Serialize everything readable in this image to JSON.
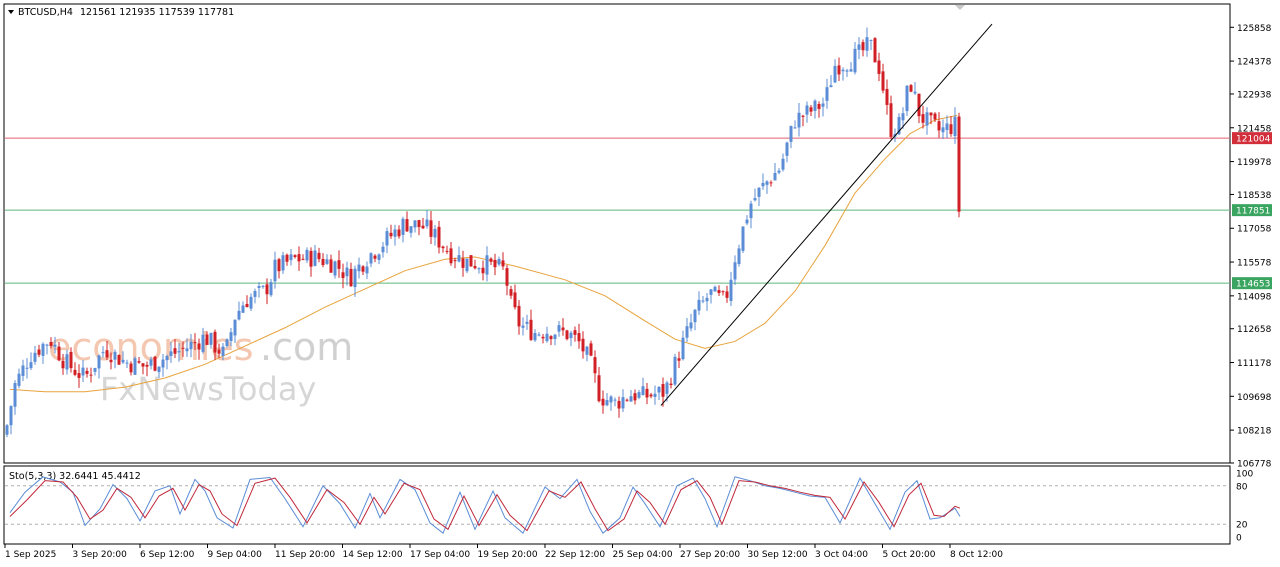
{
  "header": {
    "symbol": "BTCUSD,H4",
    "ohlc": "121561 121935 117539 117781"
  },
  "indicator": {
    "label": "Sto(5,3,3) 32.6441 45.4412",
    "scale_labels": [
      "100",
      "80",
      "20",
      "0"
    ],
    "levels": [
      80,
      20
    ]
  },
  "watermark": {
    "part1": "economies",
    "part2": ".com",
    "part3": "FxNewsToday"
  },
  "colors": {
    "bull": "#5b8dd6",
    "bear": "#d21f26",
    "ma": "#e8a33d",
    "stoch_main": "#5b8dd6",
    "stoch_signal": "#c0283a",
    "resistance": "#e06070",
    "support": "#5cb87a",
    "trendline": "#000000"
  },
  "chart_data": {
    "type": "candlestick",
    "symbol": "BTCUSD",
    "timeframe": "H4",
    "ylim": [
      106778,
      126878
    ],
    "y_ticks": [
      125858,
      124378,
      122938,
      121458,
      119978,
      118538,
      117058,
      115578,
      114098,
      112658,
      111178,
      109698,
      108218,
      106778
    ],
    "x_ticks": [
      "1 Sep 2025",
      "3 Sep 20:00",
      "6 Sep 12:00",
      "9 Sep 04:00",
      "11 Sep 20:00",
      "14 Sep 12:00",
      "17 Sep 04:00",
      "19 Sep 20:00",
      "22 Sep 12:00",
      "25 Sep 04:00",
      "27 Sep 20:00",
      "30 Sep 12:00",
      "3 Oct 04:00",
      "5 Oct 20:00",
      "8 Oct 12:00"
    ],
    "horizontal_levels": [
      {
        "label": "121004",
        "value": 121004,
        "kind": "resistance"
      },
      {
        "label": "117851",
        "value": 117851,
        "kind": "support"
      },
      {
        "label": "114653",
        "value": 114653,
        "kind": "support"
      }
    ],
    "trendline": {
      "from": {
        "x": "27 Sep",
        "y": 109300
      },
      "to": {
        "x": "9 Oct",
        "y": 126000
      }
    },
    "price_path": [
      [
        0,
        108000
      ],
      [
        10,
        110200
      ],
      [
        25,
        111500
      ],
      [
        45,
        112200
      ],
      [
        60,
        111200
      ],
      [
        80,
        110500
      ],
      [
        100,
        111800
      ],
      [
        120,
        111200
      ],
      [
        140,
        111000
      ],
      [
        160,
        111400
      ],
      [
        180,
        111800
      ],
      [
        200,
        112300
      ],
      [
        220,
        111500
      ],
      [
        230,
        113200
      ],
      [
        240,
        113900
      ],
      [
        260,
        114300
      ],
      [
        270,
        115300
      ],
      [
        290,
        115700
      ],
      [
        310,
        115800
      ],
      [
        330,
        115500
      ],
      [
        345,
        114900
      ],
      [
        360,
        115700
      ],
      [
        380,
        116500
      ],
      [
        400,
        117300
      ],
      [
        420,
        117100
      ],
      [
        430,
        116700
      ],
      [
        445,
        116000
      ],
      [
        460,
        115600
      ],
      [
        480,
        115500
      ],
      [
        500,
        115200
      ],
      [
        505,
        113800
      ],
      [
        515,
        112800
      ],
      [
        530,
        112500
      ],
      [
        545,
        112600
      ],
      [
        565,
        112400
      ],
      [
        575,
        112000
      ],
      [
        585,
        111200
      ],
      [
        595,
        109700
      ],
      [
        610,
        109400
      ],
      [
        625,
        109800
      ],
      [
        640,
        109700
      ],
      [
        660,
        109900
      ],
      [
        675,
        111700
      ],
      [
        690,
        113300
      ],
      [
        705,
        114200
      ],
      [
        720,
        113800
      ],
      [
        730,
        115800
      ],
      [
        745,
        118100
      ],
      [
        760,
        119000
      ],
      [
        775,
        119700
      ],
      [
        790,
        121800
      ],
      [
        810,
        122300
      ],
      [
        820,
        122600
      ],
      [
        830,
        124200
      ],
      [
        840,
        124300
      ],
      [
        855,
        124700
      ],
      [
        865,
        125100
      ],
      [
        875,
        124000
      ],
      [
        885,
        121400
      ],
      [
        895,
        121600
      ],
      [
        905,
        123500
      ],
      [
        915,
        122000
      ],
      [
        925,
        121600
      ],
      [
        935,
        121300
      ],
      [
        945,
        121500
      ],
      [
        952,
        121600
      ],
      [
        955,
        117781
      ]
    ],
    "moving_average": [
      [
        5,
        110000
      ],
      [
        40,
        109900
      ],
      [
        80,
        109900
      ],
      [
        120,
        110100
      ],
      [
        160,
        110500
      ],
      [
        200,
        111100
      ],
      [
        240,
        111900
      ],
      [
        280,
        112700
      ],
      [
        320,
        113600
      ],
      [
        360,
        114400
      ],
      [
        400,
        115200
      ],
      [
        440,
        115700
      ],
      [
        470,
        115800
      ],
      [
        510,
        115400
      ],
      [
        560,
        114800
      ],
      [
        600,
        114100
      ],
      [
        640,
        113000
      ],
      [
        670,
        112200
      ],
      [
        700,
        111800
      ],
      [
        730,
        112100
      ],
      [
        760,
        112900
      ],
      [
        790,
        114300
      ],
      [
        820,
        116300
      ],
      [
        850,
        118600
      ],
      [
        880,
        120100
      ],
      [
        905,
        121200
      ],
      [
        930,
        121800
      ],
      [
        952,
        122000
      ]
    ],
    "stochastic": {
      "main": [
        [
          5,
          38
        ],
        [
          20,
          70
        ],
        [
          38,
          94
        ],
        [
          55,
          86
        ],
        [
          68,
          70
        ],
        [
          80,
          18
        ],
        [
          95,
          44
        ],
        [
          108,
          82
        ],
        [
          122,
          60
        ],
        [
          135,
          25
        ],
        [
          150,
          72
        ],
        [
          165,
          80
        ],
        [
          175,
          36
        ],
        [
          190,
          90
        ],
        [
          200,
          72
        ],
        [
          212,
          30
        ],
        [
          228,
          14
        ],
        [
          245,
          90
        ],
        [
          265,
          93
        ],
        [
          280,
          60
        ],
        [
          298,
          16
        ],
        [
          318,
          80
        ],
        [
          335,
          52
        ],
        [
          350,
          14
        ],
        [
          365,
          68
        ],
        [
          375,
          30
        ],
        [
          395,
          90
        ],
        [
          410,
          74
        ],
        [
          425,
          22
        ],
        [
          438,
          6
        ],
        [
          455,
          70
        ],
        [
          470,
          12
        ],
        [
          488,
          72
        ],
        [
          500,
          30
        ],
        [
          518,
          6
        ],
        [
          540,
          78
        ],
        [
          555,
          60
        ],
        [
          572,
          90
        ],
        [
          585,
          40
        ],
        [
          598,
          6
        ],
        [
          615,
          30
        ],
        [
          628,
          78
        ],
        [
          640,
          52
        ],
        [
          655,
          16
        ],
        [
          672,
          80
        ],
        [
          688,
          92
        ],
        [
          700,
          60
        ],
        [
          712,
          16
        ],
        [
          730,
          94
        ],
        [
          745,
          88
        ],
        [
          760,
          80
        ],
        [
          775,
          76
        ],
        [
          790,
          70
        ],
        [
          805,
          64
        ],
        [
          820,
          62
        ],
        [
          835,
          22
        ],
        [
          855,
          92
        ],
        [
          870,
          52
        ],
        [
          885,
          12
        ],
        [
          900,
          70
        ],
        [
          912,
          88
        ],
        [
          925,
          28
        ],
        [
          935,
          30
        ],
        [
          950,
          45
        ],
        [
          955,
          32
        ]
      ],
      "signal": [
        [
          5,
          32
        ],
        [
          22,
          58
        ],
        [
          40,
          88
        ],
        [
          58,
          86
        ],
        [
          72,
          62
        ],
        [
          85,
          28
        ],
        [
          98,
          42
        ],
        [
          112,
          76
        ],
        [
          126,
          62
        ],
        [
          140,
          30
        ],
        [
          154,
          64
        ],
        [
          168,
          76
        ],
        [
          180,
          42
        ],
        [
          194,
          82
        ],
        [
          205,
          72
        ],
        [
          217,
          36
        ],
        [
          232,
          18
        ],
        [
          250,
          84
        ],
        [
          270,
          92
        ],
        [
          285,
          62
        ],
        [
          302,
          22
        ],
        [
          322,
          74
        ],
        [
          339,
          54
        ],
        [
          355,
          20
        ],
        [
          369,
          62
        ],
        [
          380,
          36
        ],
        [
          399,
          84
        ],
        [
          415,
          74
        ],
        [
          429,
          28
        ],
        [
          443,
          12
        ],
        [
          459,
          64
        ],
        [
          474,
          18
        ],
        [
          492,
          66
        ],
        [
          505,
          34
        ],
        [
          522,
          10
        ],
        [
          544,
          72
        ],
        [
          560,
          62
        ],
        [
          576,
          86
        ],
        [
          590,
          44
        ],
        [
          603,
          10
        ],
        [
          619,
          28
        ],
        [
          632,
          72
        ],
        [
          645,
          54
        ],
        [
          660,
          20
        ],
        [
          676,
          74
        ],
        [
          692,
          88
        ],
        [
          705,
          62
        ],
        [
          717,
          20
        ],
        [
          734,
          88
        ],
        [
          750,
          86
        ],
        [
          765,
          80
        ],
        [
          780,
          76
        ],
        [
          795,
          70
        ],
        [
          810,
          65
        ],
        [
          825,
          62
        ],
        [
          840,
          28
        ],
        [
          859,
          86
        ],
        [
          874,
          54
        ],
        [
          889,
          16
        ],
        [
          904,
          66
        ],
        [
          916,
          84
        ],
        [
          929,
          34
        ],
        [
          939,
          32
        ],
        [
          950,
          48
        ],
        [
          955,
          45
        ]
      ]
    }
  }
}
